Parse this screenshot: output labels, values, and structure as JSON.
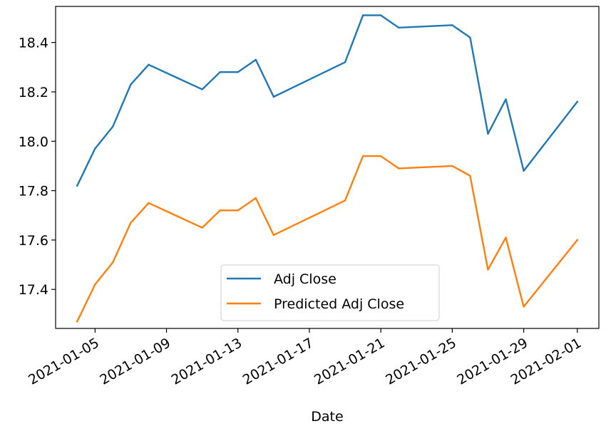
{
  "chart_data": {
    "type": "line",
    "title": "",
    "xlabel": "Date",
    "ylabel": "",
    "x": [
      "2021-01-04",
      "2021-01-05",
      "2021-01-06",
      "2021-01-07",
      "2021-01-08",
      "2021-01-11",
      "2021-01-12",
      "2021-01-13",
      "2021-01-14",
      "2021-01-15",
      "2021-01-19",
      "2021-01-20",
      "2021-01-21",
      "2021-01-22",
      "2021-01-25",
      "2021-01-26",
      "2021-01-27",
      "2021-01-28",
      "2021-01-29",
      "2021-02-01"
    ],
    "series": [
      {
        "name": "Adj Close",
        "color": "#1f77b4",
        "values": [
          17.82,
          17.97,
          18.06,
          18.23,
          18.31,
          18.21,
          18.28,
          18.28,
          18.33,
          18.18,
          18.32,
          18.51,
          18.51,
          18.46,
          18.47,
          18.42,
          18.03,
          18.17,
          17.88,
          18.16
        ]
      },
      {
        "name": "Predicted Adj Close",
        "color": "#ff7f0e",
        "values": [
          17.27,
          17.42,
          17.51,
          17.67,
          17.75,
          17.65,
          17.72,
          17.72,
          17.77,
          17.62,
          17.76,
          17.94,
          17.94,
          17.89,
          17.9,
          17.86,
          17.48,
          17.61,
          17.33,
          17.6
        ]
      }
    ],
    "xlim": [
      "2021-01-02T19:00",
      "2021-02-02T05:00"
    ],
    "ylim": [
      17.242,
      18.546
    ],
    "xticks": [
      "2021-01-05",
      "2021-01-09",
      "2021-01-13",
      "2021-01-17",
      "2021-01-21",
      "2021-01-25",
      "2021-01-29",
      "2021-02-01"
    ],
    "yticks": [
      17.4,
      17.6,
      17.8,
      18.0,
      18.2,
      18.4
    ],
    "ytick_labels": [
      "17.4",
      "17.6",
      "17.8",
      "18.0",
      "18.2",
      "18.4"
    ],
    "grid": false,
    "legend_position": "lower center"
  }
}
